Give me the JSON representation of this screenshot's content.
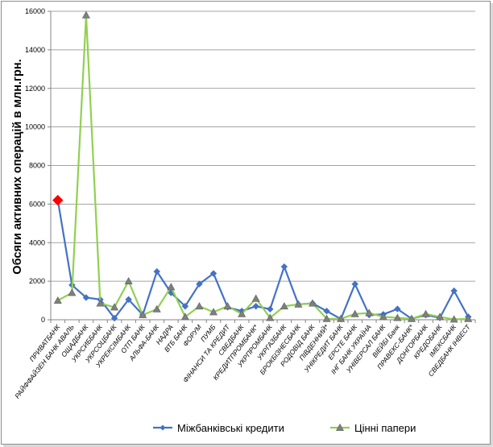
{
  "chart_data": {
    "type": "line",
    "ylabel": "Обсяги активних операцій в млн.грн.",
    "xlabel": "",
    "ylim": [
      0,
      16000
    ],
    "yticks": [
      0,
      2000,
      4000,
      6000,
      8000,
      10000,
      12000,
      14000,
      16000
    ],
    "grid": true,
    "legend_position": "bottom",
    "categories": [
      "ПРИВАТБАНК",
      "РАЙФФАЙЗЕН БАНК АВАЛЬ",
      "ОЩАДБАНК",
      "УКРСИББАНК",
      "УКРСОЦБАНК",
      "УКРЕКСІМБАНК",
      "ОТП БАНК",
      "АЛЬФА-БАНК",
      "НАДРА",
      "ВТБ БАНК",
      "ФОРУМ",
      "ПУМБ",
      "ФІНАНСИ ТА КРЕДИТ",
      "СВЕДБАНК",
      "КРЕДИТПРОМБАНК*",
      "УКРПРОМБАНК",
      "УКРГАЗБАНК",
      "БРОКБІЗНЕСБАНК",
      "РОДОВІД БАНК",
      "ПІВДЕННИЙ*",
      "УНІКРЕДИТ БАНК",
      "ЕРСТЕ БАНК",
      "ІНГ БАНК УКРАЇНА",
      "УНІВЕРСАЛ БАНК",
      "ВІЕЙБІ Банк",
      "ПРАВЕКС-БАНК*",
      "ДОНГОРБАНК",
      "КРЕДОБАНК",
      "ІМЕКСБАНК",
      "СВЕДБАНК ІНВЕСТ"
    ],
    "series": [
      {
        "name": "Міжбанківські кредити",
        "color": "#4472c4",
        "marker": "diamond",
        "highlight_index": 0,
        "highlight_color": "#ff0000",
        "values": [
          6200,
          1800,
          1150,
          1050,
          80,
          1050,
          250,
          2500,
          1400,
          700,
          1850,
          2400,
          650,
          450,
          700,
          550,
          2750,
          800,
          850,
          450,
          40,
          1850,
          250,
          280,
          560,
          50,
          250,
          100,
          1500,
          150
        ]
      },
      {
        "name": "Цінні папери",
        "color": "#92d050",
        "marker": "triangle",
        "marker_color": "#7f7f7f",
        "values": [
          1000,
          1400,
          15800,
          850,
          650,
          2000,
          250,
          550,
          1700,
          150,
          700,
          400,
          700,
          300,
          1100,
          100,
          700,
          800,
          850,
          50,
          50,
          300,
          350,
          150,
          100,
          50,
          300,
          150,
          20,
          50
        ]
      }
    ]
  }
}
